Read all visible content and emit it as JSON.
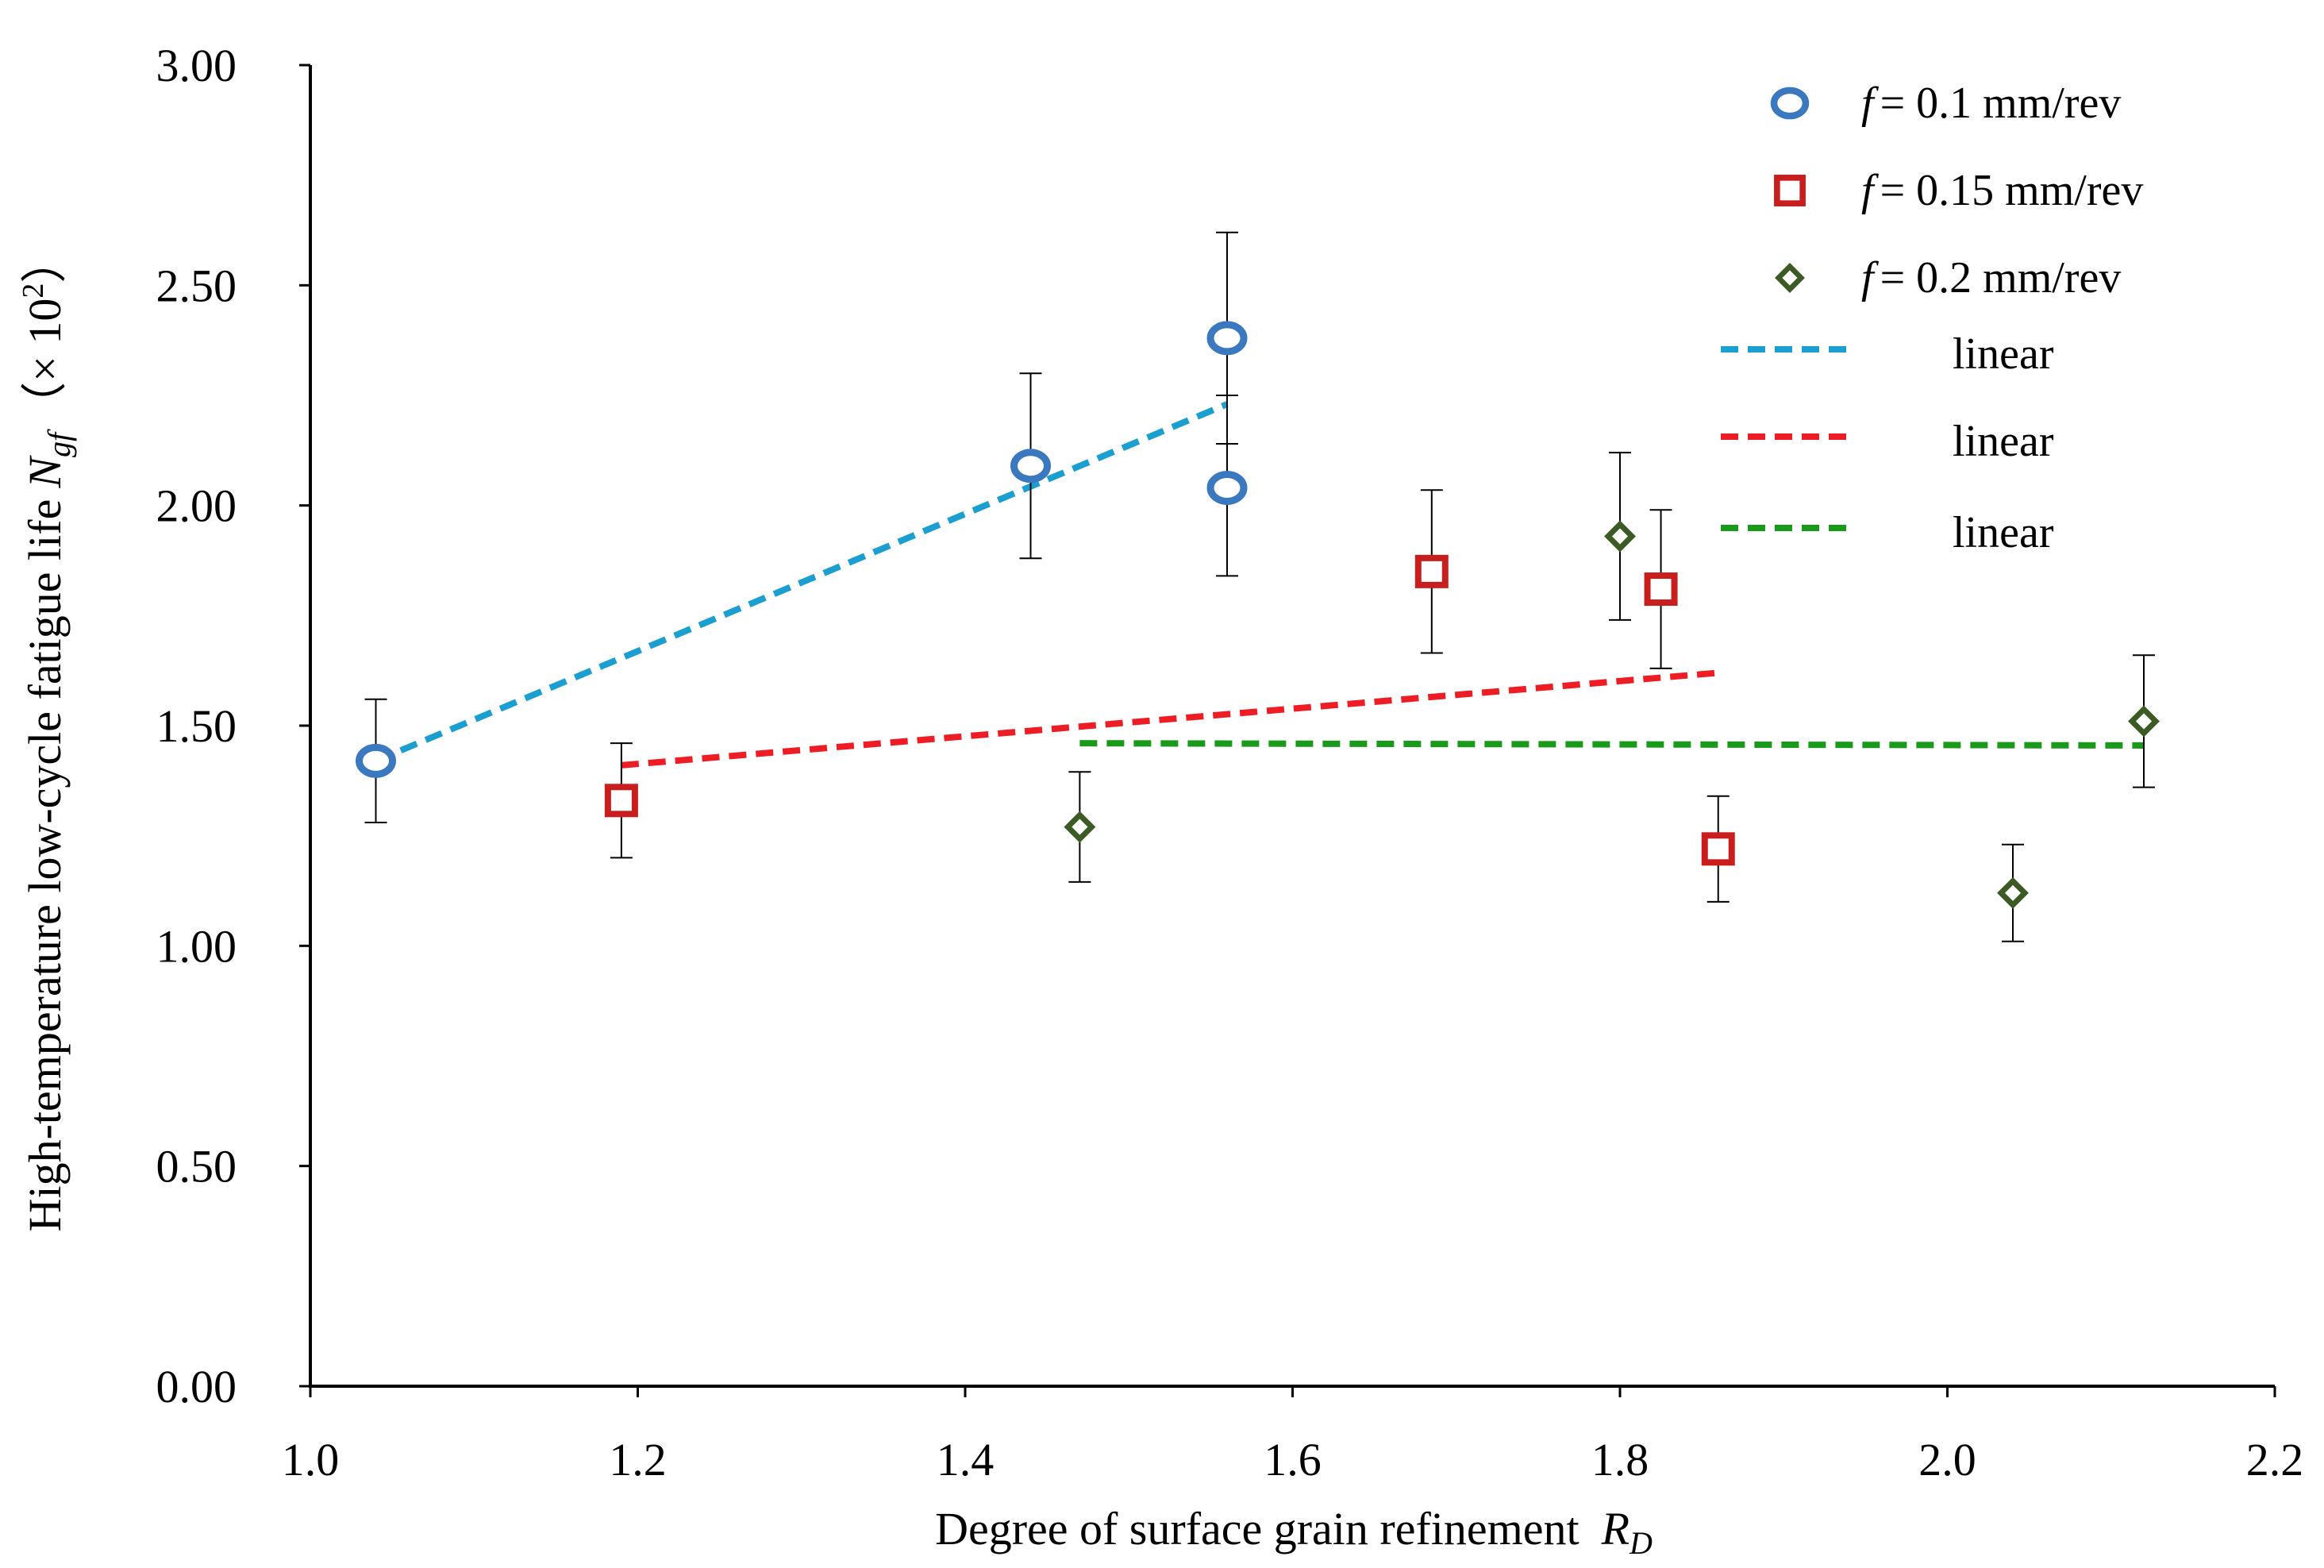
{
  "chart_data": {
    "type": "scatter",
    "xlabel": "Degree of surface grain refinement",
    "xlabel_var": "R",
    "xlabel_sub": "D",
    "ylabel": "High-temperature low-cycle fatigue life",
    "ylabel_var": "N",
    "ylabel_sub": "gf",
    "ylabel_unit_open": "（× 10",
    "ylabel_unit_exp": "2",
    "ylabel_unit_close": "）",
    "xlim": [
      1.0,
      2.2
    ],
    "ylim": [
      0.0,
      3.0
    ],
    "xticks": [
      "1.0",
      "1.2",
      "1.4",
      "1.6",
      "1.8",
      "2.0",
      "2.2"
    ],
    "yticks": [
      "0.00",
      "0.50",
      "1.00",
      "1.50",
      "2.00",
      "2.50",
      "3.00"
    ],
    "grid": false,
    "legend_position": "top-right",
    "series": [
      {
        "name": "f = 0.1 mm/rev",
        "label_var": "f",
        "label_rest": "= 0.1 mm/rev",
        "marker": "circle",
        "color": "#3a78c0",
        "points": [
          {
            "x": 1.04,
            "y": 1.42,
            "err_low": 1.28,
            "err_high": 1.56
          },
          {
            "x": 1.44,
            "y": 2.09,
            "err_low": 1.88,
            "err_high": 2.3
          },
          {
            "x": 1.56,
            "y": 2.38,
            "err_low": 2.14,
            "err_high": 2.62
          },
          {
            "x": 1.56,
            "y": 2.04,
            "err_low": 1.84,
            "err_high": 2.25
          }
        ]
      },
      {
        "name": "f = 0.15 mm/rev",
        "label_var": "f",
        "label_rest": "= 0.15 mm/rev",
        "marker": "square",
        "color": "#c81e1e",
        "points": [
          {
            "x": 1.19,
            "y": 1.33,
            "err_low": 1.2,
            "err_high": 1.46
          },
          {
            "x": 1.685,
            "y": 1.85,
            "err_low": 1.665,
            "err_high": 2.035
          },
          {
            "x": 1.825,
            "y": 1.81,
            "err_low": 1.63,
            "err_high": 1.99
          },
          {
            "x": 1.86,
            "y": 1.22,
            "err_low": 1.1,
            "err_high": 1.34
          }
        ]
      },
      {
        "name": "f = 0.2 mm/rev",
        "label_var": "f",
        "label_rest": "= 0.2 mm/rev",
        "marker": "diamond",
        "color": "#3c5a23",
        "points": [
          {
            "x": 1.47,
            "y": 1.27,
            "err_low": 1.145,
            "err_high": 1.395
          },
          {
            "x": 1.8,
            "y": 1.93,
            "err_low": 1.74,
            "err_high": 2.12
          },
          {
            "x": 2.04,
            "y": 1.12,
            "err_low": 1.01,
            "err_high": 1.23
          },
          {
            "x": 2.12,
            "y": 1.51,
            "err_low": 1.36,
            "err_high": 1.66
          }
        ]
      }
    ],
    "trendlines": [
      {
        "name": "linear",
        "color": "#1b9fd1",
        "x": [
          1.04,
          1.56
        ],
        "y": [
          1.42,
          2.23
        ]
      },
      {
        "name": "linear",
        "color": "#ee1c24",
        "x": [
          1.19,
          1.86
        ],
        "y": [
          1.41,
          1.62
        ]
      },
      {
        "name": "linear",
        "color": "#1a9a1a",
        "x": [
          1.47,
          2.12
        ],
        "y": [
          1.46,
          1.455
        ]
      }
    ]
  }
}
